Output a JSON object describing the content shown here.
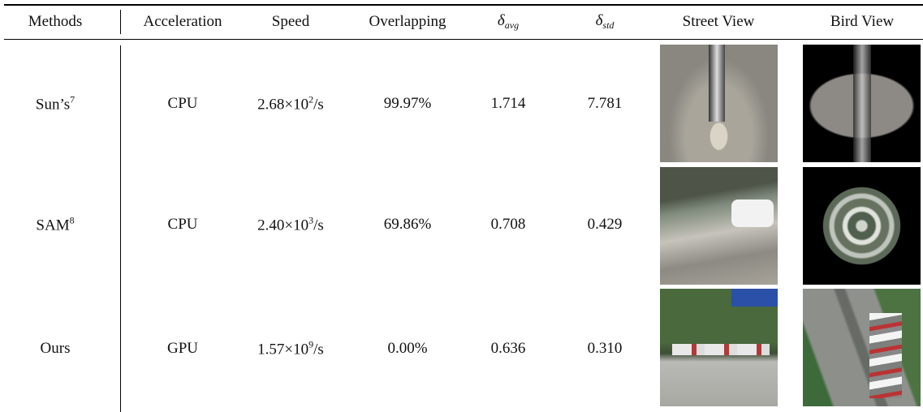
{
  "table": {
    "header": [
      {
        "text": "Methods"
      },
      {
        "text": "Acceleration"
      },
      {
        "text": "Speed"
      },
      {
        "text": "Overlapping"
      },
      {
        "symbol": "δ",
        "subscript": "avg"
      },
      {
        "symbol": "δ",
        "subscript": "std"
      },
      {
        "text": "Street View"
      },
      {
        "text": "Bird View"
      }
    ],
    "rows": [
      {
        "method": {
          "name": "Sun’s",
          "ref": "7"
        },
        "acceleration": "CPU",
        "speed": {
          "mantissa": "2.68×10",
          "exponent": "2",
          "unit": "/s"
        },
        "overlapping": "99.97%",
        "delta_avg": "1.714",
        "delta_std": "7.781"
      },
      {
        "method": {
          "name": "SAM",
          "ref": "8"
        },
        "acceleration": "CPU",
        "speed": {
          "mantissa": "2.40×10",
          "exponent": "3",
          "unit": "/s"
        },
        "overlapping": "69.86%",
        "delta_avg": "0.708",
        "delta_std": "0.429"
      },
      {
        "method": {
          "name": "Ours",
          "ref": null
        },
        "acceleration": "GPU",
        "speed": {
          "mantissa": "1.57×10",
          "exponent": "9",
          "unit": "/s"
        },
        "overlapping": "0.00%",
        "delta_avg": "0.636",
        "delta_std": "0.310"
      }
    ]
  }
}
